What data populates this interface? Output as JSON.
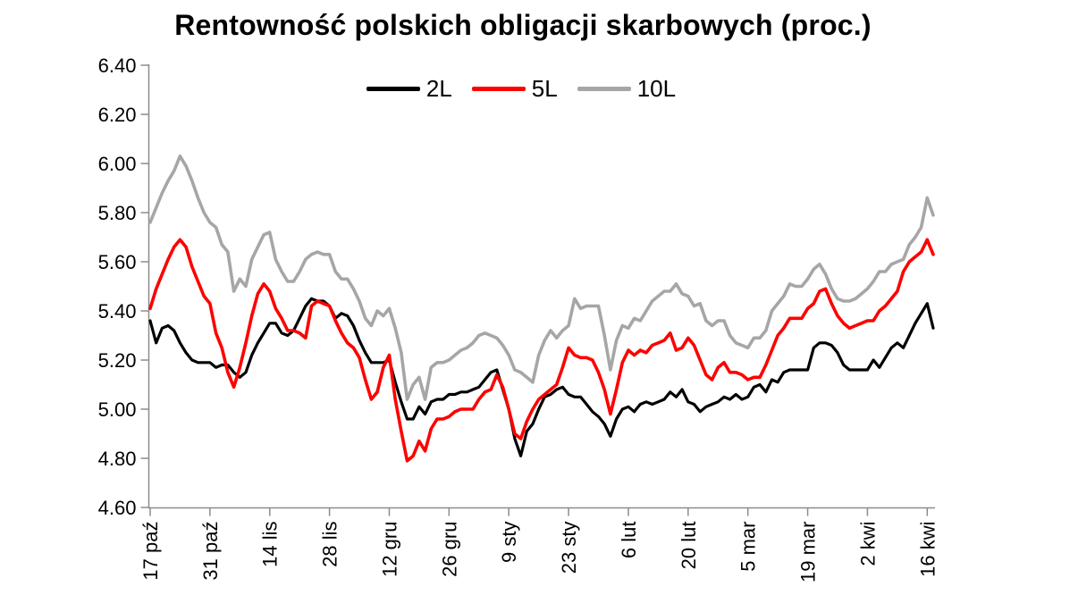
{
  "title": "Rentowność polskich obligacji skarbowych (proc.)",
  "colors": {
    "series_2l": "#000000",
    "series_5l": "#FF0000",
    "series_10l": "#A6A6A6",
    "axis": "#8C8C8C",
    "label_text": "#000000",
    "background": "#FFFFFF"
  },
  "chart_data": {
    "type": "line",
    "title": "Rentowność polskich obligacji skarbowych (proc.)",
    "xlabel": "",
    "ylabel": "",
    "grid": false,
    "legend_position": "top-center",
    "ylim": [
      4.6,
      6.4
    ],
    "y_tick_labels": [
      "6.40",
      "6.20",
      "6.00",
      "5.80",
      "5.60",
      "5.40",
      "5.20",
      "5.00",
      "4.80",
      "4.60"
    ],
    "y_tick_values": [
      6.4,
      6.2,
      6.0,
      5.8,
      5.6,
      5.4,
      5.2,
      5.0,
      4.8,
      4.6
    ],
    "x_tick_labels": [
      "17 paź",
      "31 paź",
      "14 lis",
      "28 lis",
      "12 gru",
      "26 gru",
      "9 sty",
      "23 sty",
      "6 lut",
      "20 lut",
      "5 mar",
      "19 mar",
      "2 kwi",
      "16 kwi"
    ],
    "x_tick_positions": [
      0,
      10,
      20,
      30,
      40,
      50,
      60,
      70,
      80,
      90,
      100,
      110,
      120,
      130
    ],
    "series": [
      {
        "name": "2L",
        "color": "#000000",
        "values": [
          5.36,
          5.27,
          5.33,
          5.34,
          5.32,
          5.27,
          5.23,
          5.2,
          5.19,
          5.19,
          5.19,
          5.17,
          5.18,
          5.18,
          5.15,
          5.13,
          5.15,
          5.22,
          5.27,
          5.31,
          5.35,
          5.35,
          5.31,
          5.3,
          5.32,
          5.37,
          5.42,
          5.45,
          5.44,
          5.44,
          5.42,
          5.37,
          5.39,
          5.38,
          5.34,
          5.28,
          5.23,
          5.19,
          5.19,
          5.19,
          5.2,
          5.11,
          5.03,
          4.96,
          4.96,
          5.01,
          4.98,
          5.03,
          5.04,
          5.04,
          5.06,
          5.06,
          5.07,
          5.07,
          5.08,
          5.09,
          5.12,
          5.15,
          5.16,
          5.08,
          5.0,
          4.88,
          4.81,
          4.91,
          4.94,
          5.0,
          5.05,
          5.06,
          5.08,
          5.09,
          5.06,
          5.05,
          5.05,
          5.02,
          4.99,
          4.97,
          4.94,
          4.89,
          4.96,
          5.0,
          5.01,
          4.99,
          5.02,
          5.03,
          5.02,
          5.03,
          5.04,
          5.07,
          5.05,
          5.08,
          5.03,
          5.02,
          4.99,
          5.01,
          5.02,
          5.03,
          5.05,
          5.04,
          5.06,
          5.04,
          5.05,
          5.09,
          5.1,
          5.07,
          5.12,
          5.11,
          5.15,
          5.16,
          5.16,
          5.16,
          5.16,
          5.25,
          5.27,
          5.27,
          5.26,
          5.23,
          5.18,
          5.16,
          5.16,
          5.16,
          5.16,
          5.2,
          5.17,
          5.21,
          5.25,
          5.27,
          5.25,
          5.3,
          5.35,
          5.39,
          5.43,
          5.33
        ]
      },
      {
        "name": "5L",
        "color": "#FF0000",
        "values": [
          5.41,
          5.49,
          5.55,
          5.61,
          5.66,
          5.69,
          5.66,
          5.58,
          5.52,
          5.46,
          5.43,
          5.31,
          5.25,
          5.15,
          5.09,
          5.17,
          5.27,
          5.38,
          5.47,
          5.51,
          5.48,
          5.41,
          5.37,
          5.32,
          5.32,
          5.31,
          5.29,
          5.42,
          5.44,
          5.43,
          5.42,
          5.36,
          5.31,
          5.27,
          5.25,
          5.21,
          5.12,
          5.04,
          5.07,
          5.17,
          5.22,
          5.04,
          4.91,
          4.79,
          4.81,
          4.87,
          4.83,
          4.92,
          4.96,
          4.96,
          4.97,
          4.99,
          5.0,
          5.0,
          5.0,
          5.04,
          5.07,
          5.08,
          5.14,
          5.09,
          5.0,
          4.9,
          4.88,
          4.95,
          5.0,
          5.04,
          5.06,
          5.08,
          5.1,
          5.17,
          5.25,
          5.22,
          5.21,
          5.21,
          5.2,
          5.15,
          5.08,
          4.98,
          5.08,
          5.19,
          5.24,
          5.22,
          5.24,
          5.23,
          5.26,
          5.27,
          5.28,
          5.31,
          5.24,
          5.25,
          5.29,
          5.26,
          5.2,
          5.14,
          5.12,
          5.17,
          5.19,
          5.15,
          5.15,
          5.14,
          5.12,
          5.13,
          5.13,
          5.18,
          5.24,
          5.3,
          5.33,
          5.37,
          5.37,
          5.37,
          5.41,
          5.43,
          5.48,
          5.49,
          5.43,
          5.38,
          5.35,
          5.33,
          5.34,
          5.35,
          5.36,
          5.36,
          5.4,
          5.42,
          5.45,
          5.48,
          5.56,
          5.6,
          5.62,
          5.64,
          5.69,
          5.63
        ]
      },
      {
        "name": "10L",
        "color": "#A6A6A6",
        "values": [
          5.76,
          5.82,
          5.88,
          5.93,
          5.97,
          6.03,
          5.99,
          5.93,
          5.86,
          5.8,
          5.76,
          5.74,
          5.67,
          5.64,
          5.48,
          5.53,
          5.5,
          5.61,
          5.66,
          5.71,
          5.72,
          5.61,
          5.56,
          5.52,
          5.52,
          5.56,
          5.61,
          5.63,
          5.64,
          5.63,
          5.63,
          5.56,
          5.53,
          5.53,
          5.49,
          5.44,
          5.37,
          5.34,
          5.4,
          5.38,
          5.41,
          5.33,
          5.23,
          5.04,
          5.1,
          5.13,
          5.04,
          5.17,
          5.19,
          5.19,
          5.2,
          5.22,
          5.24,
          5.25,
          5.27,
          5.3,
          5.31,
          5.3,
          5.29,
          5.26,
          5.22,
          5.16,
          5.15,
          5.13,
          5.11,
          5.22,
          5.28,
          5.32,
          5.29,
          5.32,
          5.34,
          5.45,
          5.41,
          5.42,
          5.42,
          5.42,
          5.3,
          5.16,
          5.28,
          5.34,
          5.33,
          5.37,
          5.36,
          5.4,
          5.44,
          5.46,
          5.48,
          5.48,
          5.51,
          5.47,
          5.46,
          5.42,
          5.43,
          5.36,
          5.34,
          5.36,
          5.36,
          5.3,
          5.27,
          5.26,
          5.25,
          5.29,
          5.29,
          5.32,
          5.4,
          5.43,
          5.46,
          5.51,
          5.5,
          5.5,
          5.53,
          5.57,
          5.59,
          5.55,
          5.49,
          5.45,
          5.44,
          5.44,
          5.45,
          5.47,
          5.49,
          5.52,
          5.56,
          5.56,
          5.59,
          5.6,
          5.61,
          5.67,
          5.7,
          5.74,
          5.86,
          5.79
        ]
      }
    ]
  }
}
